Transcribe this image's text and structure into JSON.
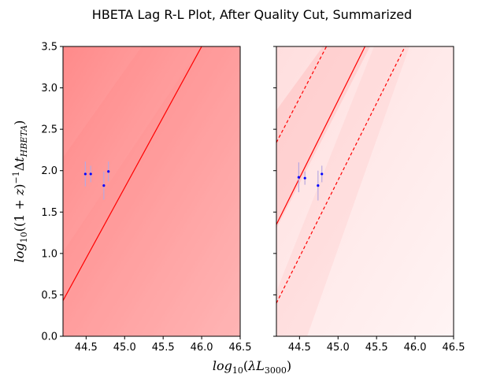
{
  "figure": {
    "title": "HBETA Lag R-L Plot, After Quality Cut, Summarized",
    "xlabel": "log10(λL3000)",
    "ylabel": "log10((1+z)−1ΔtHBETA)"
  },
  "chart_data": [
    {
      "type": "scatter",
      "panel": "left",
      "xlim": [
        44.2,
        46.5
      ],
      "ylim": [
        0.0,
        3.5
      ],
      "xticks": [
        "44.5",
        "45.0",
        "45.5",
        "46.0",
        "46.5"
      ],
      "yticks": [
        "0.0",
        "0.5",
        "1.0",
        "1.5",
        "2.0",
        "2.5",
        "3.0",
        "3.5"
      ],
      "points": [
        {
          "x": 44.49,
          "y": 1.96,
          "yerr": 0.15
        },
        {
          "x": 44.56,
          "y": 1.96,
          "yerr": 0.1
        },
        {
          "x": 44.73,
          "y": 1.82,
          "yerr": 0.17
        },
        {
          "x": 44.79,
          "y": 1.99,
          "yerr": 0.12
        }
      ],
      "lines": [
        {
          "x": [
            44.2,
            46.0
          ],
          "y": [
            0.43,
            3.5
          ],
          "style": "solid",
          "color": "#ff0000"
        }
      ],
      "background": "posterior-density-red",
      "point_color": "#0000ff"
    },
    {
      "type": "scatter",
      "panel": "right",
      "xlim": [
        44.2,
        46.5
      ],
      "ylim": [
        0.0,
        3.5
      ],
      "xticks": [
        "44.5",
        "45.0",
        "45.5",
        "46.0",
        "46.5"
      ],
      "points": [
        {
          "x": 44.49,
          "y": 1.92,
          "yerr": 0.18
        },
        {
          "x": 44.57,
          "y": 1.91,
          "yerr": 0.08
        },
        {
          "x": 44.74,
          "y": 1.82,
          "yerr": 0.18
        },
        {
          "x": 44.79,
          "y": 1.96,
          "yerr": 0.1
        }
      ],
      "lines": [
        {
          "x": [
            44.2,
            45.35
          ],
          "y": [
            1.35,
            3.5
          ],
          "style": "solid",
          "color": "#ff0000"
        },
        {
          "x": [
            44.2,
            44.85
          ],
          "y": [
            2.34,
            3.5
          ],
          "style": "dashed",
          "color": "#ff0000"
        },
        {
          "x": [
            44.2,
            45.87
          ],
          "y": [
            0.4,
            3.5
          ],
          "style": "dashed",
          "color": "#ff0000"
        }
      ],
      "background": "posterior-density-light-red",
      "point_color": "#0000ff"
    }
  ]
}
